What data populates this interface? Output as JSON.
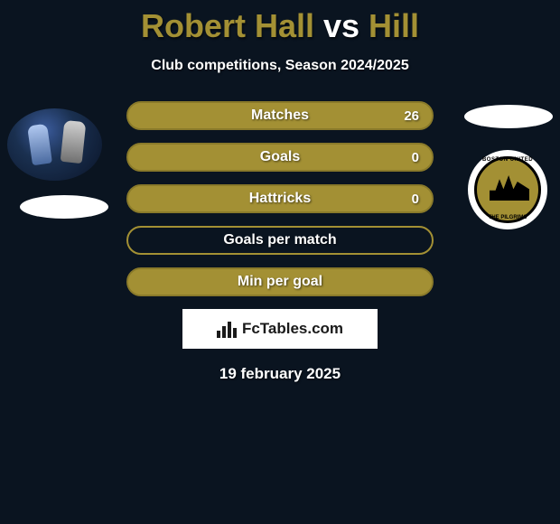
{
  "title_parts": [
    {
      "text": "Robert Hall",
      "color": "#a39034"
    },
    {
      "text": " vs ",
      "color": "#ffffff"
    },
    {
      "text": "Hill",
      "color": "#a39034"
    }
  ],
  "subtitle": "Club competitions, Season 2024/2025",
  "colors": {
    "olive": "#a39034",
    "olive_border": "#8a7a2a",
    "panel_bg": "#0a1420"
  },
  "bars": [
    {
      "label": "Matches",
      "value": "26",
      "fill_pct": 100,
      "bg": "#a39034",
      "border": "#8a7a2a",
      "fill": "#a39034"
    },
    {
      "label": "Goals",
      "value": "0",
      "fill_pct": 100,
      "bg": "#a39034",
      "border": "#8a7a2a",
      "fill": "#a39034"
    },
    {
      "label": "Hattricks",
      "value": "0",
      "fill_pct": 100,
      "bg": "#a39034",
      "border": "#8a7a2a",
      "fill": "#a39034"
    },
    {
      "label": "Goals per match",
      "value": "",
      "fill_pct": 0,
      "bg": "transparent",
      "border": "#a39034",
      "fill": "transparent"
    },
    {
      "label": "Min per goal",
      "value": "",
      "fill_pct": 100,
      "bg": "#a39034",
      "border": "#8a7a2a",
      "fill": "#a39034"
    }
  ],
  "logo_right": {
    "top_text": "BOSTON UNITED",
    "bottom_text": "THE PILGRIMS"
  },
  "footer_brand": "FcTables.com",
  "date": "19 february 2025"
}
